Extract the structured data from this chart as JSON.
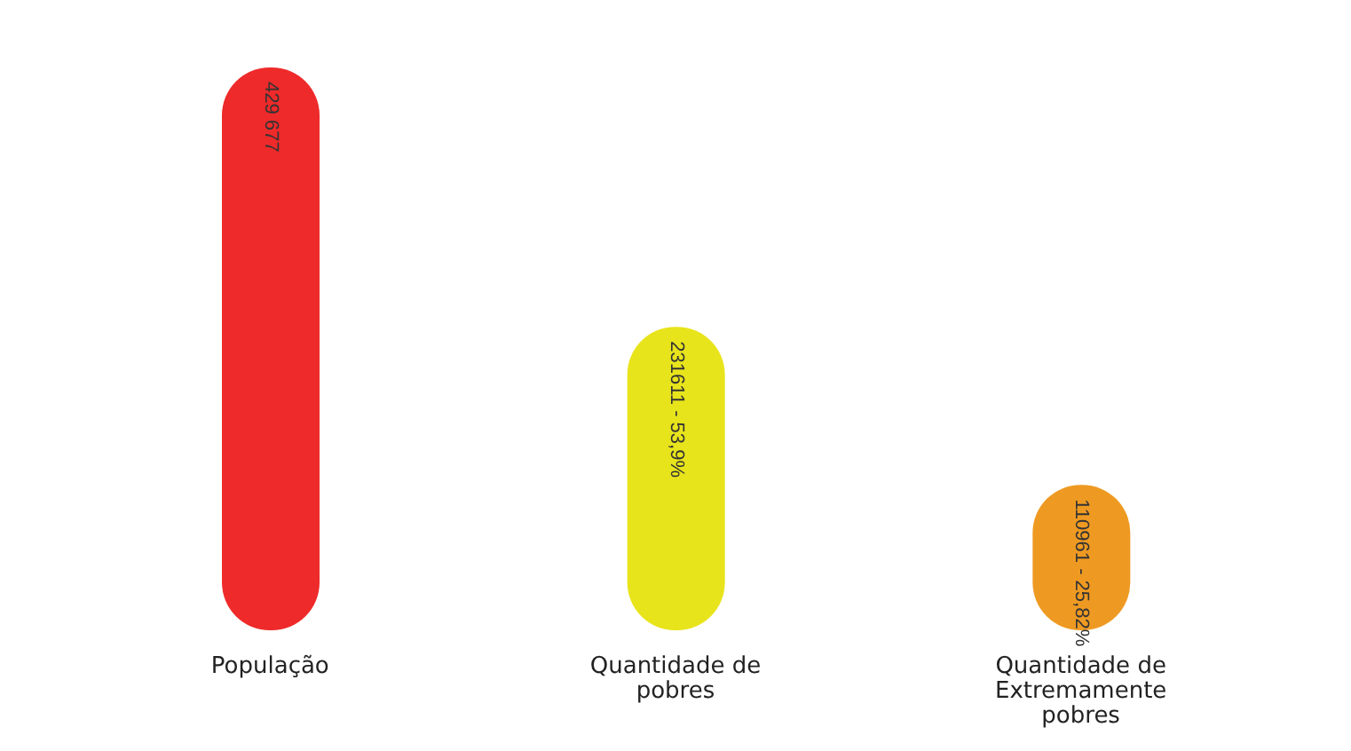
{
  "chart_data": {
    "type": "bar",
    "categories": [
      "População",
      "Quantidade de pobres",
      "Quantidade de Extremamente pobres"
    ],
    "values": [
      429677,
      231611,
      110961
    ],
    "colors": [
      "#ee2a2a",
      "#e8e41c",
      "#ee9a22"
    ],
    "value_labels": [
      "429 677",
      "231611 - 53,9%",
      "110961 - 25,82%"
    ],
    "grid": false,
    "legend": false
  }
}
